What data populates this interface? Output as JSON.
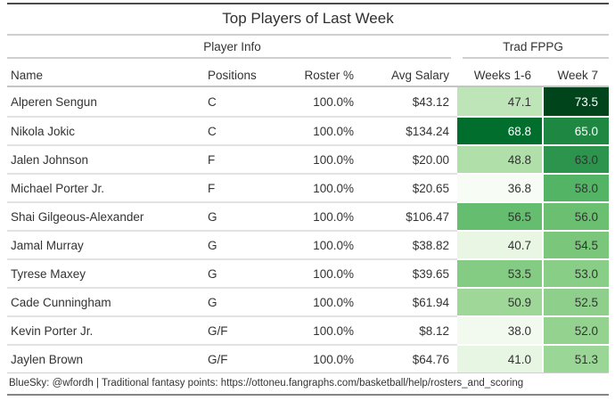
{
  "title": "Top Players of Last Week",
  "footer": "BlueSky: @wfordh | Traditional fantasy points: https://ottoneu.fangraphs.com/basketball/help/rosters_and_scoring",
  "table": {
    "column_groups": [
      {
        "label": "Player Info",
        "span": 4
      },
      {
        "label": "Trad FPPG",
        "span": 2
      }
    ],
    "columns": [
      {
        "label": "Name"
      },
      {
        "label": "Positions"
      },
      {
        "label": "Roster %"
      },
      {
        "label": "Avg Salary"
      },
      {
        "label": "Weeks 1-6"
      },
      {
        "label": "Week 7"
      }
    ],
    "rows": [
      {
        "name": "Alperen Sengun",
        "positions": "C",
        "roster_pct": "100.0%",
        "avg_salary": "$43.12",
        "weeks_1_6": {
          "value": "47.1",
          "bg": "#bee5b7",
          "fg": "#333333"
        },
        "week_7": {
          "value": "73.5",
          "bg": "#00441b",
          "fg": "#ffffff"
        }
      },
      {
        "name": "Nikola Jokic",
        "positions": "C",
        "roster_pct": "100.0%",
        "avg_salary": "$134.24",
        "weeks_1_6": {
          "value": "68.8",
          "bg": "#016e2d",
          "fg": "#ffffff"
        },
        "week_7": {
          "value": "65.0",
          "bg": "#1e8741",
          "fg": "#ffffff"
        }
      },
      {
        "name": "Jalen Johnson",
        "positions": "F",
        "roster_pct": "100.0%",
        "avg_salary": "$20.00",
        "weeks_1_6": {
          "value": "48.8",
          "bg": "#b0dfa9",
          "fg": "#333333"
        },
        "week_7": {
          "value": "63.0",
          "bg": "#2c944c",
          "fg": "#333333"
        }
      },
      {
        "name": "Michael Porter Jr.",
        "positions": "F",
        "roster_pct": "100.0%",
        "avg_salary": "$20.65",
        "weeks_1_6": {
          "value": "36.8",
          "bg": "#f7fcf5",
          "fg": "#333333"
        },
        "week_7": {
          "value": "58.0",
          "bg": "#54b466",
          "fg": "#333333"
        }
      },
      {
        "name": "Shai Gilgeous-Alexander",
        "positions": "G",
        "roster_pct": "100.0%",
        "avg_salary": "$106.47",
        "weeks_1_6": {
          "value": "56.5",
          "bg": "#65bd6f",
          "fg": "#333333"
        },
        "week_7": {
          "value": "56.0",
          "bg": "#6bbf71",
          "fg": "#333333"
        }
      },
      {
        "name": "Jamal Murray",
        "positions": "G",
        "roster_pct": "100.0%",
        "avg_salary": "$38.82",
        "weeks_1_6": {
          "value": "40.7",
          "bg": "#e8f6e3",
          "fg": "#333333"
        },
        "week_7": {
          "value": "54.5",
          "bg": "#7ac77b",
          "fg": "#333333"
        }
      },
      {
        "name": "Tyrese Maxey",
        "positions": "G",
        "roster_pct": "100.0%",
        "avg_salary": "$39.65",
        "weeks_1_6": {
          "value": "53.5",
          "bg": "#84cc83",
          "fg": "#333333"
        },
        "week_7": {
          "value": "53.0",
          "bg": "#89ce87",
          "fg": "#333333"
        }
      },
      {
        "name": "Cade Cunningham",
        "positions": "G",
        "roster_pct": "100.0%",
        "avg_salary": "$61.94",
        "weeks_1_6": {
          "value": "50.9",
          "bg": "#9ed798",
          "fg": "#333333"
        },
        "week_7": {
          "value": "52.5",
          "bg": "#8ed08b",
          "fg": "#333333"
        }
      },
      {
        "name": "Kevin Porter Jr.",
        "positions": "G/F",
        "roster_pct": "100.0%",
        "avg_salary": "$8.12",
        "weeks_1_6": {
          "value": "38.0",
          "bg": "#f2faf0",
          "fg": "#333333"
        },
        "week_7": {
          "value": "52.0",
          "bg": "#93d28f",
          "fg": "#333333"
        }
      },
      {
        "name": "Jaylen Brown",
        "positions": "G/F",
        "roster_pct": "100.0%",
        "avg_salary": "$64.76",
        "weeks_1_6": {
          "value": "41.0",
          "bg": "#e6f6e2",
          "fg": "#333333"
        },
        "week_7": {
          "value": "51.3",
          "bg": "#9ad695",
          "fg": "#333333"
        }
      }
    ]
  },
  "colors": {
    "heatmap_scale_low": "#f7fcf5",
    "heatmap_scale_high": "#00441b",
    "top_border": "#4a4a4a",
    "bottom_border": "#858585"
  },
  "chart_data": {
    "type": "table",
    "title": "Top Players of Last Week",
    "column_groups": [
      "Player Info",
      "Trad FPPG"
    ],
    "columns": [
      "Name",
      "Positions",
      "Roster %",
      "Avg Salary",
      "Weeks 1-6",
      "Week 7"
    ],
    "rows": [
      [
        "Alperen Sengun",
        "C",
        100.0,
        43.12,
        47.1,
        73.5
      ],
      [
        "Nikola Jokic",
        "C",
        100.0,
        134.24,
        68.8,
        65.0
      ],
      [
        "Jalen Johnson",
        "F",
        100.0,
        20.0,
        48.8,
        63.0
      ],
      [
        "Michael Porter Jr.",
        "F",
        100.0,
        20.65,
        36.8,
        58.0
      ],
      [
        "Shai Gilgeous-Alexander",
        "G",
        100.0,
        106.47,
        56.5,
        56.0
      ],
      [
        "Jamal Murray",
        "G",
        100.0,
        38.82,
        40.7,
        54.5
      ],
      [
        "Tyrese Maxey",
        "G",
        100.0,
        39.65,
        53.5,
        53.0
      ],
      [
        "Cade Cunningham",
        "G",
        100.0,
        61.94,
        50.9,
        52.5
      ],
      [
        "Kevin Porter Jr.",
        "G/F",
        100.0,
        8.12,
        38.0,
        52.0
      ],
      [
        "Jaylen Brown",
        "G/F",
        100.0,
        64.76,
        41.0,
        51.3
      ]
    ],
    "heatmap_columns": [
      "Weeks 1-6",
      "Week 7"
    ],
    "heatmap_domain": [
      36.8,
      73.5
    ],
    "footer": "BlueSky: @wfordh | Traditional fantasy points: https://ottoneu.fangraphs.com/basketball/help/rosters_and_scoring"
  }
}
